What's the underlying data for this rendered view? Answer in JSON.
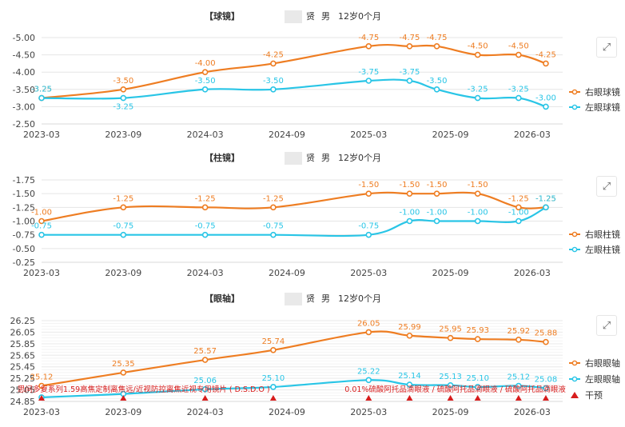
{
  "colors": {
    "right": "#ee7d22",
    "left": "#29c5e6",
    "intervention": "#d71d1d",
    "grid": "#e5e5e5",
    "text": "#333333"
  },
  "icons": {
    "expand": "expand-icon"
  },
  "x_ticks": [
    "2023-03",
    "2023-09",
    "2024-03",
    "2024-09",
    "2025-03",
    "2025-09",
    "2026-03"
  ],
  "chart_data": [
    {
      "type": "line",
      "title_prefix": "【球镜】",
      "title_name": "贤",
      "title_gender": "男",
      "title_age": "12岁0个月",
      "y_ticks": [
        "-5.00",
        "-4.50",
        "-4.00",
        "-3.50",
        "-3.00",
        "-2.50"
      ],
      "ylim": [
        -5.0,
        -2.5
      ],
      "y_inverted": true,
      "x": [
        "2023-03",
        "2023-09",
        "2024-03",
        "2024-08",
        "2025-03",
        "2025-06",
        "2025-08",
        "2025-11",
        "2026-02",
        "2026-04"
      ],
      "series": [
        {
          "name": "右眼球镜",
          "values": [
            -3.25,
            -3.5,
            -4.0,
            -4.25,
            -4.75,
            -4.75,
            -4.75,
            -4.5,
            -4.5,
            -4.25
          ],
          "labels": [
            "-3.25",
            "-3.50",
            "-4.00",
            "-4.25",
            "-4.75",
            "-4.75",
            "-4.75",
            "-4.50",
            "-4.50",
            "-4.25"
          ]
        },
        {
          "name": "左眼球镜",
          "values": [
            -3.25,
            -3.25,
            -3.5,
            -3.5,
            -3.75,
            -3.75,
            -3.5,
            -3.25,
            -3.25,
            -3.0
          ],
          "labels": [
            "-3.25",
            "-3.25",
            "-3.50",
            "-3.50",
            "-3.75",
            "-3.75",
            "-3.50",
            "-3.25",
            "-3.25",
            "-3.00"
          ]
        }
      ]
    },
    {
      "type": "line",
      "title_prefix": "【柱镜】",
      "title_name": "贤",
      "title_gender": "男",
      "title_age": "12岁0个月",
      "y_ticks": [
        "-1.75",
        "-1.50",
        "-1.25",
        "-1.00",
        "-0.75",
        "-0.50",
        "-0.25"
      ],
      "ylim": [
        -1.75,
        -0.25
      ],
      "y_inverted": true,
      "x": [
        "2023-03",
        "2023-09",
        "2024-03",
        "2024-08",
        "2025-03",
        "2025-06",
        "2025-08",
        "2025-11",
        "2026-02",
        "2026-04"
      ],
      "series": [
        {
          "name": "右眼柱镜",
          "values": [
            -1.0,
            -1.25,
            -1.25,
            -1.25,
            -1.5,
            -1.5,
            -1.5,
            -1.5,
            -1.25,
            -1.25
          ],
          "labels": [
            "-1.00",
            "-1.25",
            "-1.25",
            "-1.25",
            "-1.50",
            "-1.50",
            "-1.50",
            "-1.50",
            "-1.25",
            "-1.25"
          ]
        },
        {
          "name": "左眼柱镜",
          "values": [
            -0.75,
            -0.75,
            -0.75,
            -0.75,
            -0.75,
            -1.0,
            -1.0,
            -1.0,
            -1.0,
            -1.25
          ],
          "labels": [
            "-0.75",
            "-0.75",
            "-0.75",
            "-0.75",
            "-0.75",
            "-1.00",
            "-1.00",
            "-1.00",
            "-1.00",
            "-1.25"
          ]
        }
      ]
    },
    {
      "type": "line",
      "title_prefix": "【眼轴】",
      "title_name": "贤",
      "title_gender": "男",
      "title_age": "12岁0个月",
      "y_ticks": [
        "26.25",
        "26.05",
        "25.85",
        "25.65",
        "25.45",
        "25.25",
        "25.05",
        "24.85"
      ],
      "ylim": [
        24.85,
        26.25
      ],
      "y_inverted": false,
      "x": [
        "2023-03",
        "2023-09",
        "2024-03",
        "2024-08",
        "2025-03",
        "2025-06",
        "2025-09",
        "2025-11",
        "2026-02",
        "2026-04"
      ],
      "series": [
        {
          "name": "右眼眼轴",
          "values": [
            25.12,
            25.35,
            25.57,
            25.74,
            26.05,
            25.99,
            25.95,
            25.93,
            25.92,
            25.88
          ],
          "labels": [
            "25.12",
            "25.35",
            "25.57",
            "25.74",
            "26.05",
            "25.99",
            "25.95",
            "25.93",
            "25.92",
            "25.88"
          ]
        },
        {
          "name": "左眼眼轴",
          "values": [
            24.92,
            24.98,
            25.06,
            25.1,
            25.22,
            25.14,
            25.13,
            25.1,
            25.12,
            25.08
          ],
          "labels": [
            "",
            "",
            "25.06",
            "25.10",
            "25.22",
            "25.14",
            "25.13",
            "25.10",
            "25.12",
            "25.08"
          ]
        }
      ],
      "interventions": {
        "name": "干预",
        "x": [
          "2023-03",
          "2023-09",
          "2024-03",
          "2024-08",
          "2025-03",
          "2025-06",
          "2025-09",
          "2025-11",
          "2026-02",
          "2026-04"
        ],
        "notes": [
          {
            "x": "2023-03",
            "text": "思问多复系列1.59高焦定制离焦远/近视防控离焦近视专用镜片 ( D.S.D.O )"
          },
          {
            "x": "2025-03",
            "text": "0.01%硫酸阿托品滴眼液 / 硫酸阿托品滴眼液 / 硫酸阿托品滴眼液"
          }
        ]
      }
    }
  ]
}
